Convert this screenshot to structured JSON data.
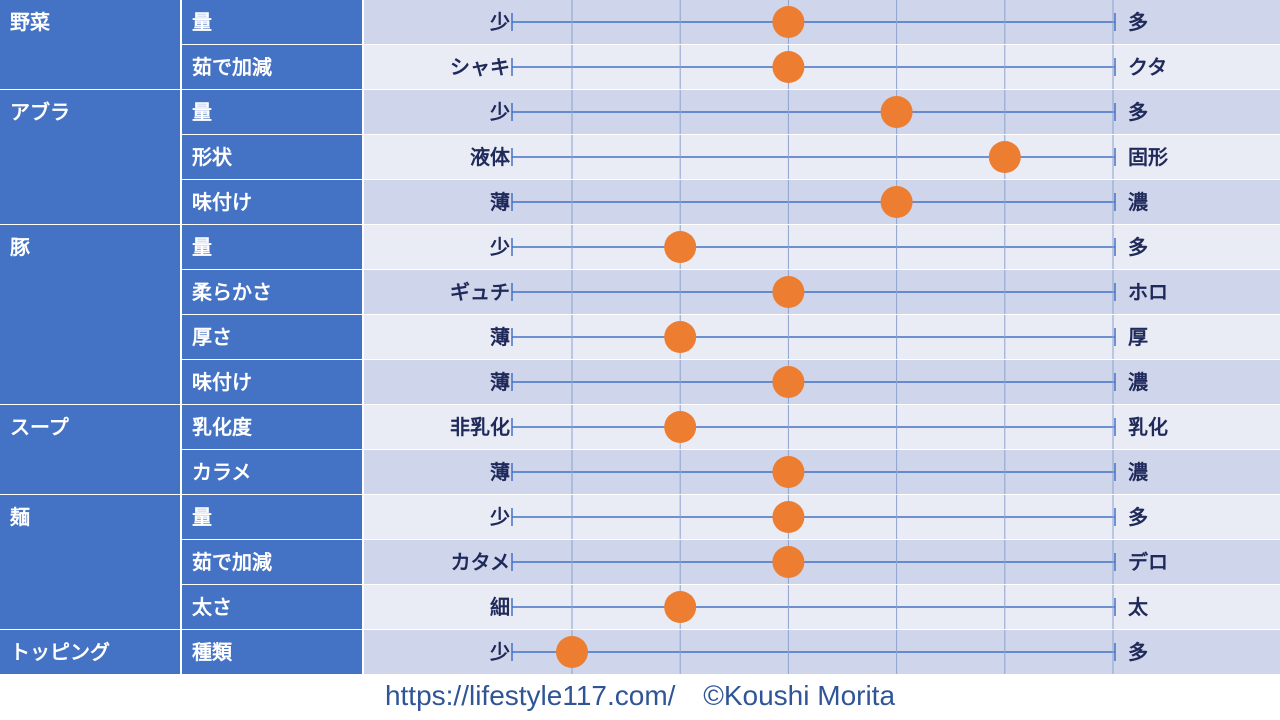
{
  "chart_data": {
    "type": "scatter",
    "scale_ticks": 6,
    "colors": {
      "header": "#4472C4",
      "band_dark": "#CFD5EA",
      "band_light": "#E9EBF5",
      "dot": "#ED7D31",
      "line": "#4472C4"
    },
    "groups": [
      {
        "category": "野菜",
        "rows": [
          {
            "attribute": "量",
            "left": "少",
            "right": "多",
            "value": 3
          },
          {
            "attribute": "茹で加減",
            "left": "シャキ",
            "right": "クタ",
            "value": 3
          }
        ]
      },
      {
        "category": "アブラ",
        "rows": [
          {
            "attribute": "量",
            "left": "少",
            "right": "多",
            "value": 4
          },
          {
            "attribute": "形状",
            "left": "液体",
            "right": "固形",
            "value": 5
          },
          {
            "attribute": "味付け",
            "left": "薄",
            "right": "濃",
            "value": 4
          }
        ]
      },
      {
        "category": "豚",
        "rows": [
          {
            "attribute": "量",
            "left": "少",
            "right": "多",
            "value": 2
          },
          {
            "attribute": "柔らかさ",
            "left": "ギュチ",
            "right": "ホロ",
            "value": 3
          },
          {
            "attribute": "厚さ",
            "left": "薄",
            "right": "厚",
            "value": 2
          },
          {
            "attribute": "味付け",
            "left": "薄",
            "right": "濃",
            "value": 3
          }
        ]
      },
      {
        "category": "スープ",
        "rows": [
          {
            "attribute": "乳化度",
            "left": "非乳化",
            "right": "乳化",
            "value": 2
          },
          {
            "attribute": "カラメ",
            "left": "薄",
            "right": "濃",
            "value": 3
          }
        ]
      },
      {
        "category": "麺",
        "rows": [
          {
            "attribute": "量",
            "left": "少",
            "right": "多",
            "value": 3
          },
          {
            "attribute": "茹で加減",
            "left": "カタメ",
            "right": "デロ",
            "value": 3
          },
          {
            "attribute": "太さ",
            "left": "細",
            "right": "太",
            "value": 2
          }
        ]
      },
      {
        "category": "トッピング",
        "rows": [
          {
            "attribute": "種類",
            "left": "少",
            "right": "多",
            "value": 1
          }
        ]
      }
    ]
  },
  "footer": {
    "url": "https://lifestyle117.com/",
    "credit": "©Koushi Morita"
  }
}
